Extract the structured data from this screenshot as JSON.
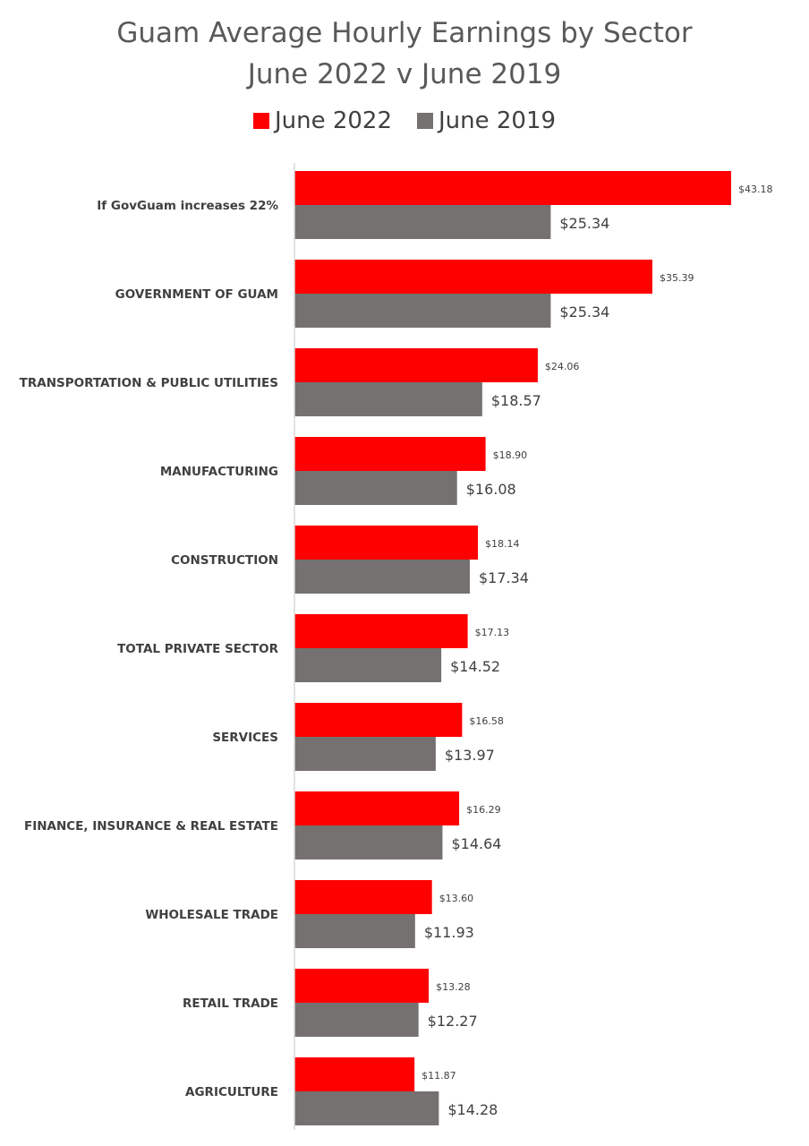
{
  "chart_data": {
    "type": "bar",
    "orientation": "horizontal",
    "title": [
      "Guam Average Hourly Earnings by Sector",
      "June 2022 v June 2019"
    ],
    "legend_position": "top",
    "categories": [
      "If GovGuam increases 22%",
      "GOVERNMENT OF GUAM",
      "TRANSPORTATION & PUBLIC UTILITIES",
      "MANUFACTURING",
      "CONSTRUCTION",
      "TOTAL PRIVATE SECTOR",
      "SERVICES",
      "FINANCE, INSURANCE & REAL ESTATE",
      "WHOLESALE TRADE",
      "RETAIL TRADE",
      "AGRICULTURE"
    ],
    "series": [
      {
        "name": "June 2022",
        "color": "#ff0000",
        "values": [
          43.18,
          35.39,
          24.06,
          18.9,
          18.14,
          17.13,
          16.58,
          16.29,
          13.6,
          13.28,
          11.87
        ],
        "labels": [
          "$43.18",
          "$35.39",
          "$24.06",
          "$18.90",
          "$18.14",
          "$17.13",
          "$16.58",
          "$16.29",
          "$13.60",
          "$13.28",
          "$11.87"
        ]
      },
      {
        "name": "June 2019",
        "color": "#767171",
        "values": [
          25.34,
          25.34,
          18.57,
          16.08,
          17.34,
          14.52,
          13.97,
          14.64,
          11.93,
          12.27,
          14.28
        ],
        "labels": [
          "$25.34",
          "$25.34",
          "$18.57",
          "$16.08",
          "$17.34",
          "$14.52",
          "$13.97",
          "$14.64",
          "$11.93",
          "$12.27",
          "$14.28"
        ]
      }
    ],
    "xlim": [
      0,
      44
    ],
    "grid": false,
    "xaxis_visible": false
  }
}
